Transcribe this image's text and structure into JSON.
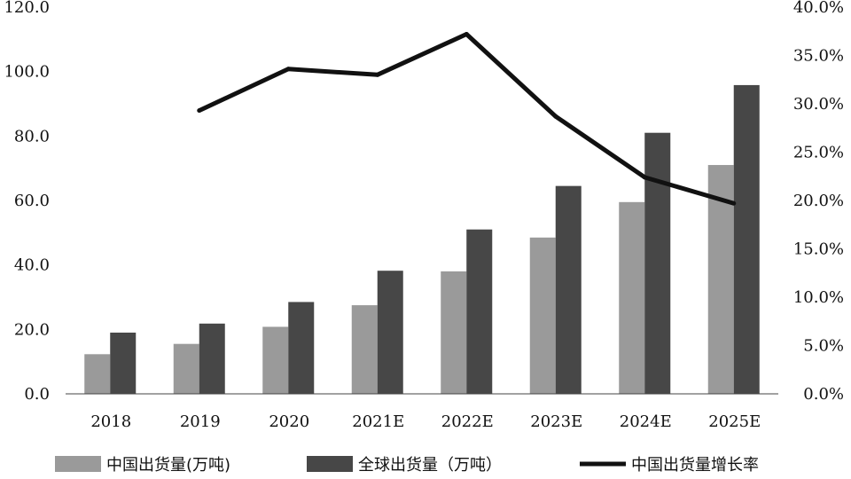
{
  "chart_data": {
    "type": "bar",
    "categories": [
      "2018",
      "2019",
      "2020",
      "2021E",
      "2022E",
      "2023E",
      "2024E",
      "2025E"
    ],
    "series": [
      {
        "name": "中国出货量(万吨)",
        "type": "bar",
        "axis": "left",
        "color": "#9a9a9a",
        "values": [
          12.3,
          15.5,
          20.8,
          27.5,
          38.0,
          48.5,
          59.5,
          71.0
        ]
      },
      {
        "name": "全球出货量（万吨）",
        "type": "bar",
        "axis": "left",
        "color": "#474747",
        "values": [
          19.0,
          21.8,
          28.5,
          38.2,
          51.0,
          64.5,
          81.0,
          95.8
        ]
      },
      {
        "name": "中国出货量增长率",
        "type": "line",
        "axis": "right",
        "color": "#111111",
        "values": [
          null,
          29.3,
          33.6,
          33.0,
          37.2,
          28.7,
          22.4,
          19.7
        ]
      }
    ],
    "y_left": {
      "min": 0,
      "max": 120,
      "step": 20,
      "ticks": [
        "0.0",
        "20.0",
        "40.0",
        "60.0",
        "80.0",
        "100.0",
        "120.0"
      ]
    },
    "y_right": {
      "min": 0,
      "max": 40,
      "step": 5,
      "ticks": [
        "0.0%",
        "5.0%",
        "10.0%",
        "15.0%",
        "20.0%",
        "25.0%",
        "30.0%",
        "35.0%",
        "40.0%"
      ]
    },
    "grid": false,
    "legend": "bottom"
  }
}
